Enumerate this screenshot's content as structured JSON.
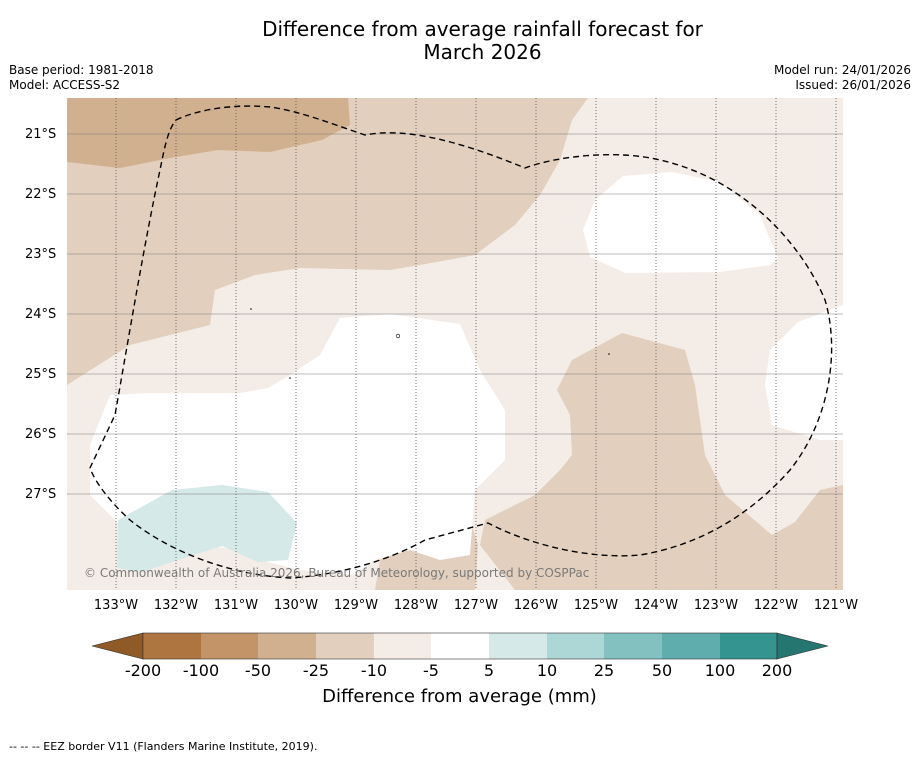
{
  "title_line1": "Difference from average rainfall forecast for",
  "title_line2": "March 2026",
  "base_period": "Base period: 1981-2018",
  "model": "Model: ACCESS-S2",
  "model_run": "Model run: 24/01/2026",
  "issued": "Issued: 26/01/2026",
  "copyright": "© Commonwealth of Australia 2026, Bureau of Meteorology, supported by COSPPac",
  "axes": {
    "lat_labels": [
      "21°S",
      "22°S",
      "23°S",
      "24°S",
      "25°S",
      "26°S",
      "27°S"
    ],
    "lon_labels": [
      "133°W",
      "132°W",
      "131°W",
      "130°W",
      "129°W",
      "128°W",
      "127°W",
      "126°W",
      "125°W",
      "124°W",
      "123°W",
      "122°W",
      "121°W"
    ],
    "lat_values": [
      -21,
      -22,
      -23,
      -24,
      -25,
      -26,
      -27
    ],
    "lon_values": [
      -133,
      -132,
      -131,
      -130,
      -129,
      -128,
      -127,
      -126,
      -125,
      -124,
      -123,
      -122,
      -121
    ],
    "lon_range": [
      -133.8,
      -120.95
    ],
    "lat_range": [
      -20.4,
      -28.6
    ]
  },
  "colorbar": {
    "title": "Difference from average (mm)",
    "labels": [
      "-200",
      "-100",
      "-50",
      "-25",
      "-10",
      "-5",
      "5",
      "10",
      "25",
      "50",
      "100",
      "200"
    ],
    "colors": [
      "#8f5a26",
      "#ae7540",
      "#c29468",
      "#d1b08f",
      "#e2cfbd",
      "#f4ede7",
      "#ffffff",
      "#d4e9e8",
      "#acd7d6",
      "#82c1c0",
      "#5fadac",
      "#34948f",
      "#257571"
    ]
  },
  "legend_footnote": "--  --  -- EEZ border V11 (Flanders Marine Institute, 2019).",
  "colors": {
    "bin_m50_m25": "#d1b08f",
    "bin_m25_m10": "#e2cfbd",
    "bin_m10_m5": "#f4ede7",
    "bin_5_10": "#d4e9e8"
  }
}
